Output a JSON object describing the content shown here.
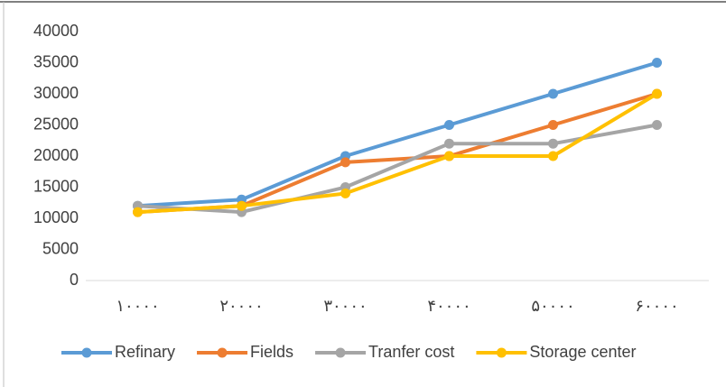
{
  "chart_data": {
    "type": "line",
    "categories": [
      "۱۰۰۰۰",
      "۲۰۰۰۰",
      "۳۰۰۰۰",
      "۴۰۰۰۰",
      "۵۰۰۰۰",
      "۶۰۰۰۰"
    ],
    "series": [
      {
        "name": "Refinary",
        "color": "#5b9bd5",
        "values": [
          12000,
          13000,
          20000,
          25000,
          30000,
          35000
        ]
      },
      {
        "name": "Fields",
        "color": "#ed7d31",
        "values": [
          11000,
          12000,
          19000,
          20000,
          25000,
          30000
        ]
      },
      {
        "name": "Tranfer cost",
        "color": "#a5a5a5",
        "values": [
          12000,
          11000,
          15000,
          22000,
          22000,
          25000
        ]
      },
      {
        "name": "Storage center",
        "color": "#ffc000",
        "values": [
          11000,
          12000,
          14000,
          20000,
          20000,
          30000
        ]
      }
    ],
    "ylim": [
      0,
      40000
    ],
    "yticks": [
      0,
      5000,
      10000,
      15000,
      20000,
      25000,
      30000,
      35000,
      40000
    ],
    "grid": false,
    "legend": "bottom"
  }
}
